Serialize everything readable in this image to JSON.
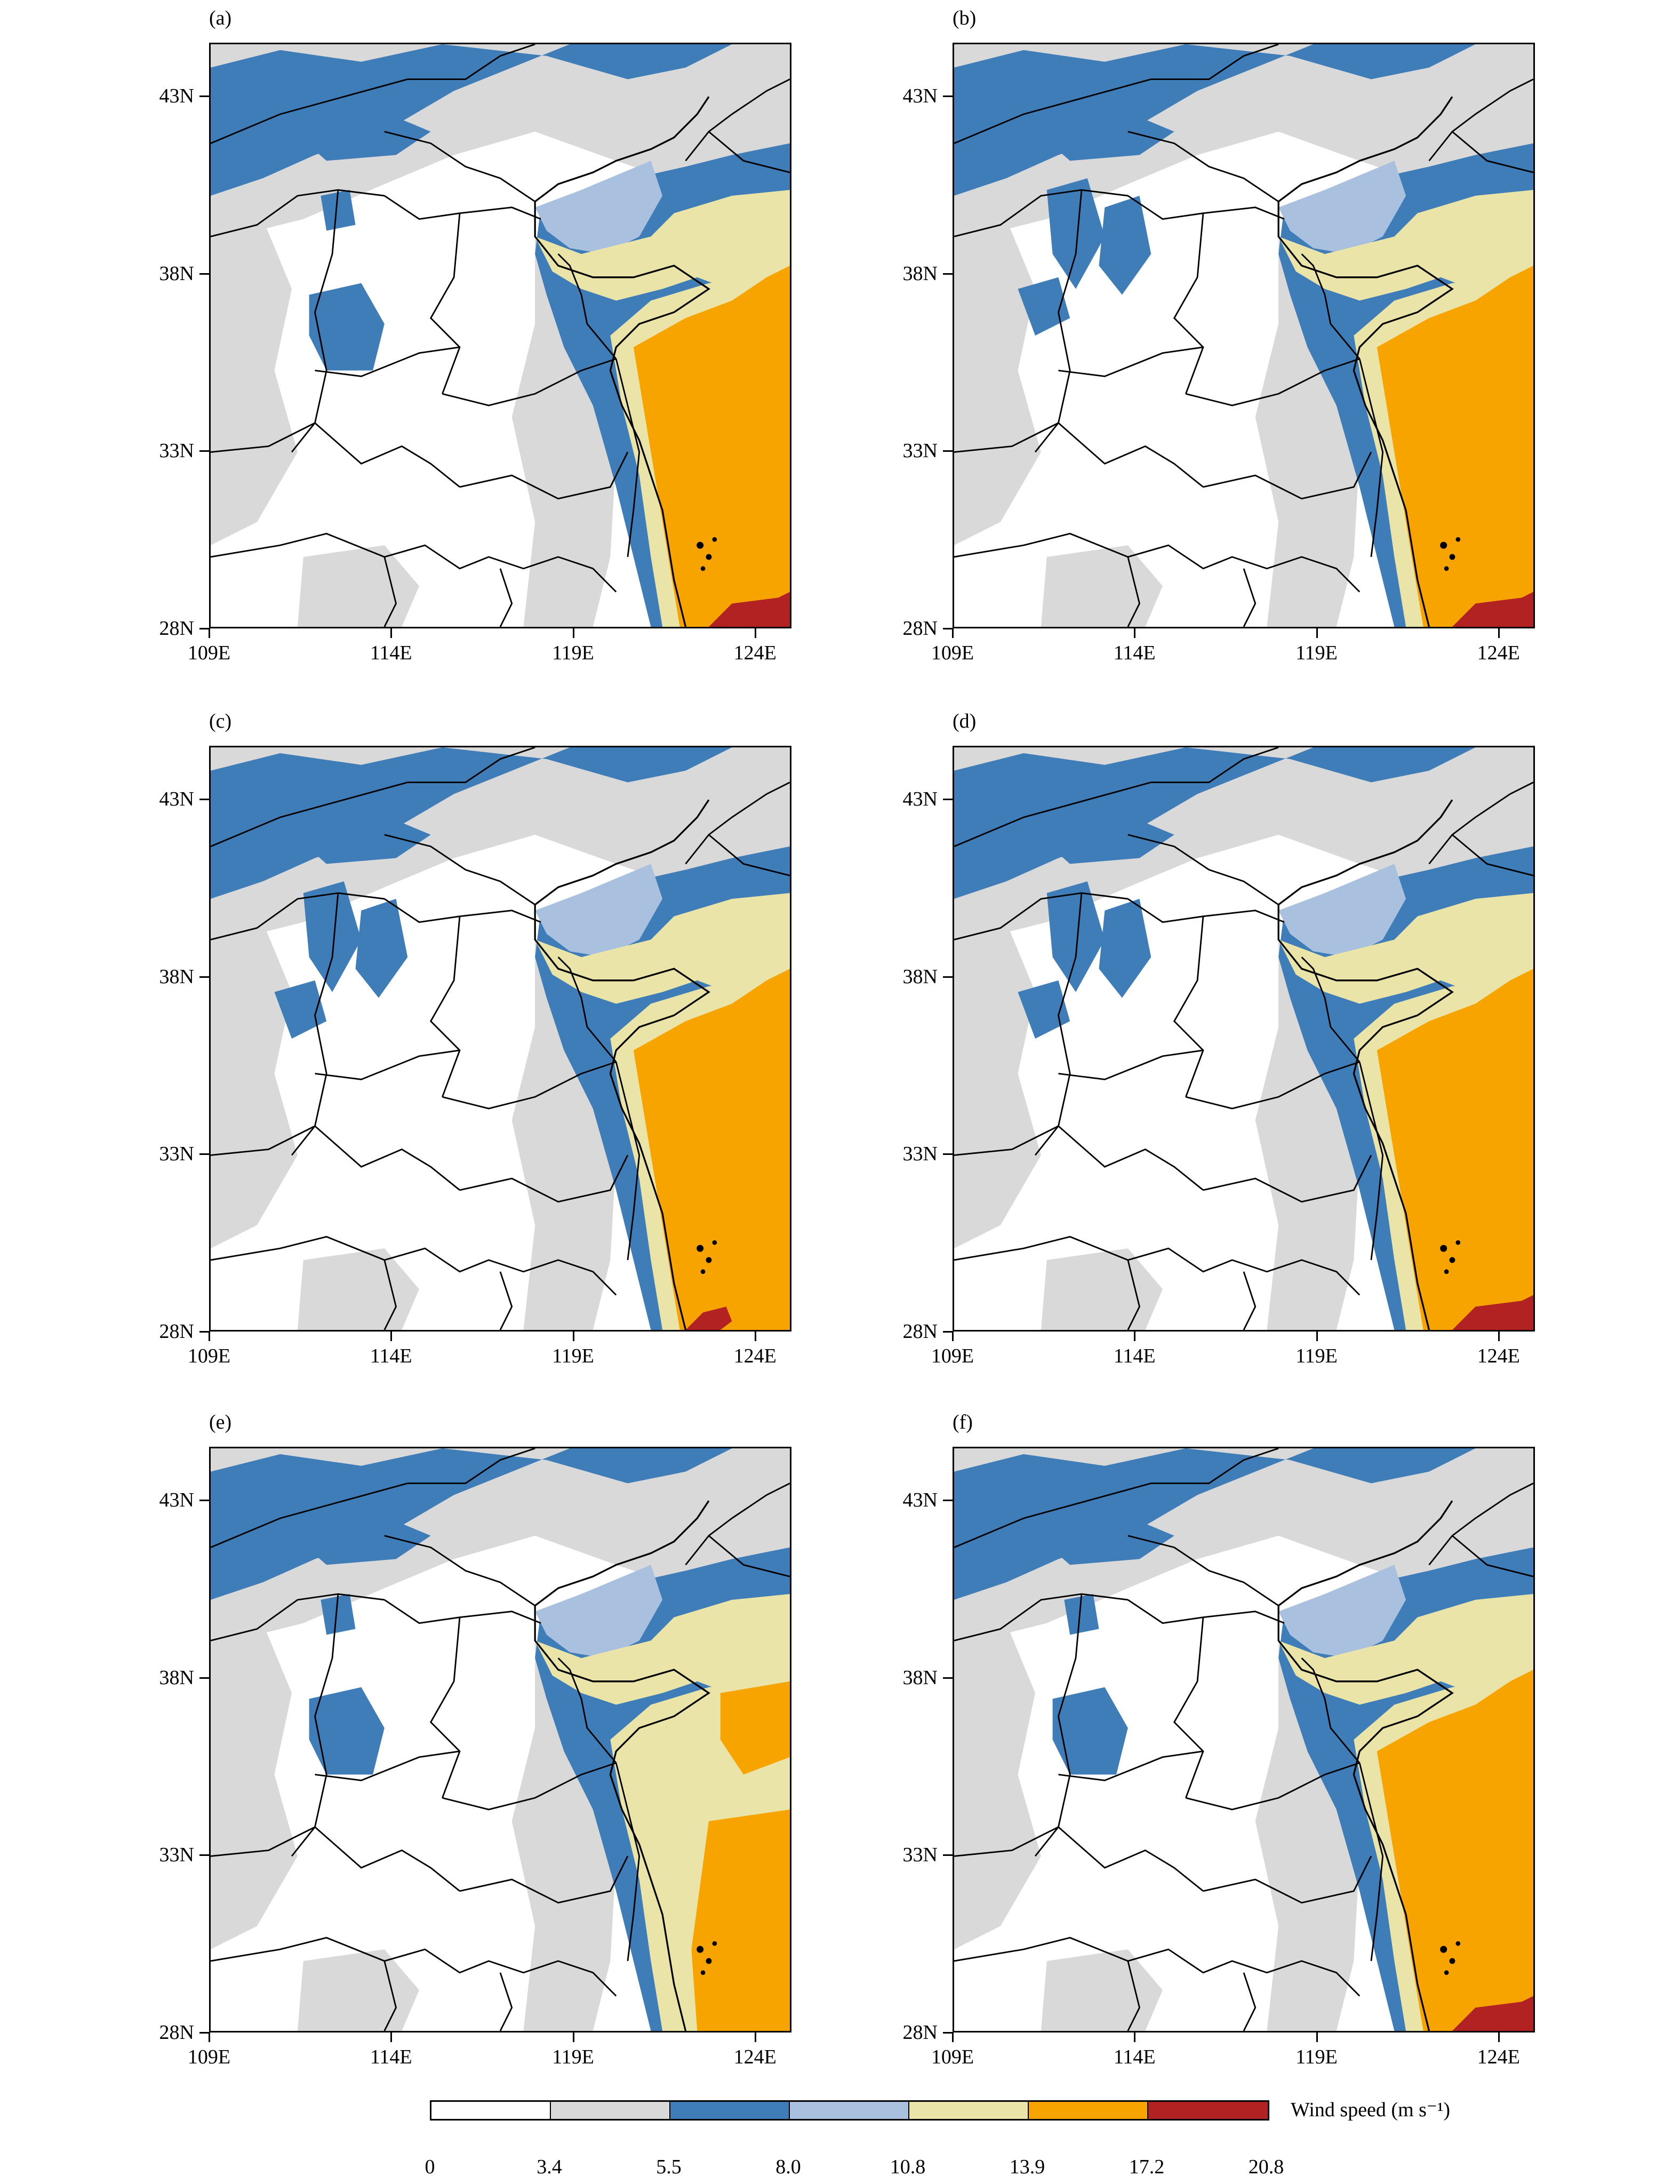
{
  "panels": [
    {
      "label": "(a)"
    },
    {
      "label": "(b)"
    },
    {
      "label": "(c)"
    },
    {
      "label": "(d)"
    },
    {
      "label": "(e)"
    },
    {
      "label": "(f)"
    }
  ],
  "axes": {
    "lat_labels": [
      "43N",
      "38N",
      "33N",
      "28N"
    ],
    "lon_labels": [
      "109E",
      "114E",
      "119E",
      "124E"
    ],
    "lat_range": [
      28,
      44.5
    ],
    "lon_range": [
      109,
      125
    ]
  },
  "colorbar": {
    "title": "Wind speed (m s⁻¹)",
    "ticks": [
      "0",
      "3.4",
      "5.5",
      "8.0",
      "10.8",
      "13.9",
      "17.2",
      "20.8"
    ],
    "colors": [
      "#ffffff",
      "#d9d9d9",
      "#3f7db8",
      "#a9c0de",
      "#ebe4a8",
      "#f7a400",
      "#b32222"
    ]
  }
}
